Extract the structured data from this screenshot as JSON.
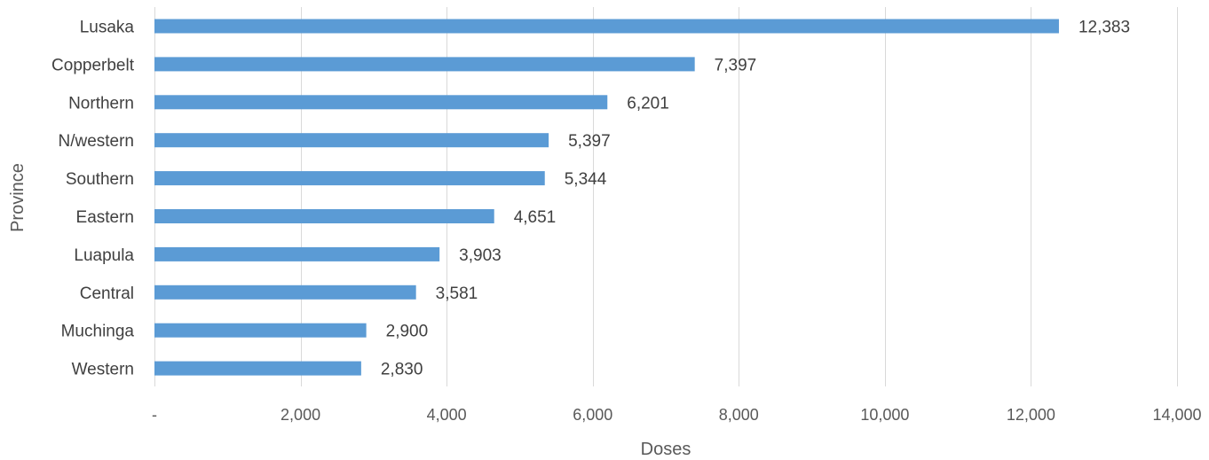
{
  "chart_data": {
    "type": "bar",
    "orientation": "horizontal",
    "categories": [
      "Lusaka",
      "Copperbelt",
      "Northern",
      "N/western",
      "Southern",
      "Eastern",
      "Luapula",
      "Central",
      "Muchinga",
      "Western"
    ],
    "values": [
      12383,
      7397,
      6201,
      5397,
      5344,
      4651,
      3903,
      3581,
      2900,
      2830
    ],
    "data_labels": [
      "12,383",
      "7,397",
      "6,201",
      "5,397",
      "5,344",
      "4,651",
      "3,903",
      "3,581",
      "2,900",
      "2,830"
    ],
    "xlabel": "Doses",
    "ylabel": "Province",
    "xlim": [
      0,
      14000
    ],
    "xticks": [
      0,
      2000,
      4000,
      6000,
      8000,
      10000,
      12000,
      14000
    ],
    "xtick_labels": [
      "-",
      "2,000",
      "4,000",
      "6,000",
      "8,000",
      "10,000",
      "12,000",
      "14,000"
    ],
    "grid": "vertical",
    "legend": "none",
    "bar_color": "#5b9bd5"
  }
}
